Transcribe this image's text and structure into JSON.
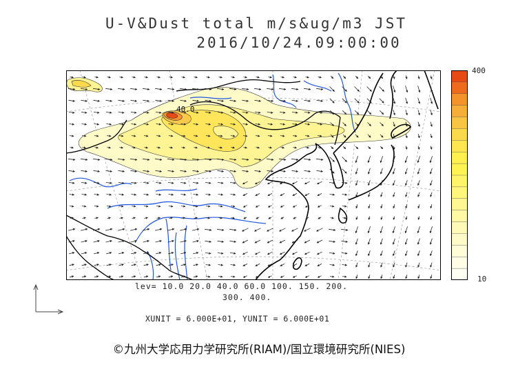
{
  "title": {
    "line1": "U-V&Dust total m/s&ug/m3 JST",
    "line2": "2016/10/24.09:00:00"
  },
  "map": {
    "contour_label": "40.0",
    "colors": {
      "land_outline": "#000000",
      "rivers": "#1e56e0",
      "grid": "#9a9a9a",
      "vectors": "#222222"
    }
  },
  "colorbar": {
    "max_label": "400",
    "min_label": "10",
    "colors": [
      "#e84a14",
      "#ee6a1c",
      "#f4922c",
      "#f6ae3a",
      "#f8c545",
      "#fbd94c",
      "#fde650",
      "#fff04f",
      "#fff253",
      "#fff46a",
      "#fff67e",
      "#fff791",
      "#fff8a4",
      "#fffab7",
      "#fffbc8",
      "#fffcd8",
      "#fffde6",
      "#fffef2"
    ]
  },
  "levels": {
    "line1": "lev= 10.0 20.0 40.0 60.0 100. 150. 200.",
    "line2": "300. 400."
  },
  "units": "XUNIT = 6.000E+01, YUNIT = 6.000E+01",
  "credit": "©九州大学応用力学研究所(RIAM)/国立環境研究所(NIES)"
}
